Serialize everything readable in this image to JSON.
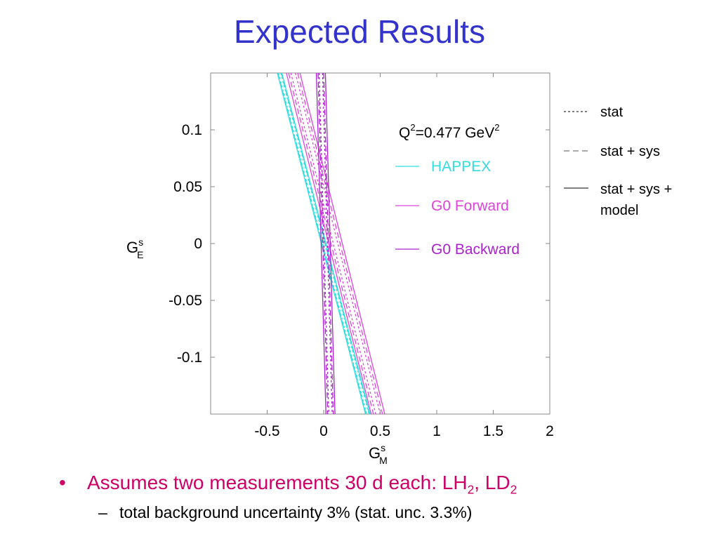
{
  "slide_title": "Expected Results",
  "bullets": {
    "main": {
      "prefix": "Assumes two measurements 30 d each: LH",
      "sub1": "2",
      "mid": ", LD",
      "sub2": "2"
    },
    "sub": "total background uncertainty 3% (stat. unc. 3.3%)"
  },
  "colors": {
    "title": "#3333cc",
    "bullet": "#cc0066",
    "happex": "#33dddd",
    "g0_forward": "#dd44dd",
    "g0_backward": "#aa22cc"
  },
  "chart_data": {
    "type": "line",
    "annotation": {
      "base": "Q",
      "sup1": "2",
      "mid": "=0.477 GeV",
      "sup2": "2"
    },
    "xlabel": {
      "main": "G",
      "sup": "s",
      "sub": "M"
    },
    "ylabel": {
      "main": "G",
      "sup": "s",
      "sub": "E"
    },
    "xlim": [
      -1.0,
      2.0
    ],
    "ylim": [
      -0.15,
      0.15
    ],
    "xticks": [
      "-0.5",
      "0",
      "0.5",
      "1",
      "1.5",
      "2"
    ],
    "xtick_values": [
      -0.5,
      0,
      0.5,
      1,
      1.5,
      2
    ],
    "yticks": [
      "0.1",
      "0.05",
      "0",
      "-0.05",
      "-0.1"
    ],
    "ytick_values": [
      0.1,
      0.05,
      0,
      -0.05,
      -0.1
    ],
    "series": [
      {
        "name": "HAPPEX",
        "color": "#33dddd",
        "center": {
          "x_at_ymax": -0.39,
          "x_at_ymin": 0.39
        },
        "bands": {
          "stat": 0.01,
          "sys": 0.015,
          "model": 0.02
        }
      },
      {
        "name": "G0 Forward",
        "color": "#dd44dd",
        "center": {
          "x_at_ymax": -0.27,
          "x_at_ymin": 0.48
        },
        "bands": {
          "stat": 0.02,
          "sys": 0.04,
          "model": 0.06
        }
      },
      {
        "name": "G0 Backward",
        "color": "#aa22cc",
        "center": {
          "x_at_ymax": -0.025,
          "x_at_ymin": 0.06
        },
        "bands": {
          "stat": 0.015,
          "sys": 0.025,
          "model": 0.04
        }
      }
    ],
    "line_styles": [
      {
        "label": "stat",
        "dash": "3,3"
      },
      {
        "label": "stat + sys",
        "dash": "8,5"
      },
      {
        "label": "stat + sys +",
        "label2": "model",
        "dash": ""
      }
    ]
  }
}
